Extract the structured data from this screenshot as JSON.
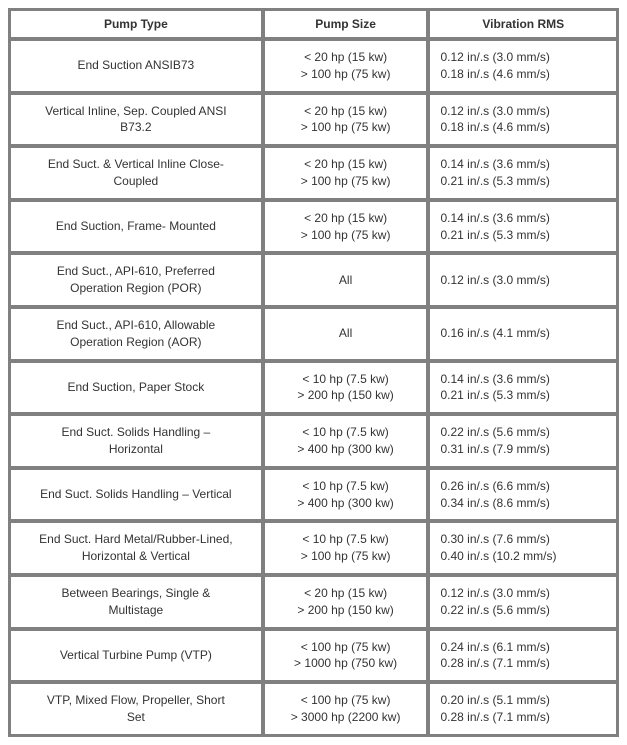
{
  "table": {
    "headers": {
      "type": "Pump Type",
      "size": "Pump Size",
      "vib": "Vibration RMS"
    },
    "rows": [
      {
        "type": [
          "End Suction ANSIB73"
        ],
        "size": [
          "< 20 hp (15 kw)",
          "> 100 hp (75 kw)"
        ],
        "vib": [
          "0.12 in/.s (3.0 mm/s)",
          "0.18 in/.s (4.6 mm/s)"
        ]
      },
      {
        "type": [
          "Vertical Inline, Sep. Coupled ANSI",
          "B73.2"
        ],
        "size": [
          "< 20 hp (15 kw)",
          "> 100 hp (75 kw)"
        ],
        "vib": [
          "0.12 in/.s (3.0 mm/s)",
          "0.18 in/.s (4.6 mm/s)"
        ]
      },
      {
        "type": [
          "End Suct. & Vertical Inline Close-",
          "Coupled"
        ],
        "size": [
          "< 20 hp (15 kw)",
          "> 100 hp (75 kw)"
        ],
        "vib": [
          "0.14 in/.s (3.6 mm/s)",
          "0.21 in/.s (5.3 mm/s)"
        ]
      },
      {
        "type": [
          "End Suction, Frame- Mounted"
        ],
        "size": [
          "< 20 hp (15 kw)",
          "> 100 hp (75 kw)"
        ],
        "vib": [
          "0.14 in/.s (3.6 mm/s)",
          "0.21 in/.s (5.3 mm/s)"
        ]
      },
      {
        "type": [
          "End Suct., API-610, Preferred",
          "Operation Region (POR)"
        ],
        "size": [
          "All"
        ],
        "vib": [
          "0.12 in/.s (3.0 mm/s)"
        ]
      },
      {
        "type": [
          "End Suct., API-610, Allowable",
          "Operation Region (AOR)"
        ],
        "size": [
          "All"
        ],
        "vib": [
          "0.16 in/.s (4.1 mm/s)"
        ]
      },
      {
        "type": [
          "End Suction, Paper Stock"
        ],
        "size": [
          "< 10 hp (7.5 kw)",
          "> 200 hp (150 kw)"
        ],
        "vib": [
          "0.14 in/.s (3.6 mm/s)",
          "0.21 in/.s (5.3 mm/s)"
        ]
      },
      {
        "type": [
          "End Suct. Solids Handling –",
          "Horizontal"
        ],
        "size": [
          "< 10 hp (7.5 kw)",
          "> 400 hp (300 kw)"
        ],
        "vib": [
          "0.22 in/.s (5.6 mm/s)",
          "0.31 in/.s (7.9 mm/s)"
        ]
      },
      {
        "type": [
          "End Suct. Solids Handling – Vertical"
        ],
        "size": [
          "< 10 hp (7.5 kw)",
          "> 400 hp (300 kw)"
        ],
        "vib": [
          "0.26 in/.s (6.6 mm/s)",
          "0.34 in/.s (8.6 mm/s)"
        ]
      },
      {
        "type": [
          "End Suct. Hard Metal/Rubber-Lined,",
          "Horizontal & Vertical"
        ],
        "size": [
          "< 10 hp (7.5 kw)",
          "> 100 hp (75 kw)"
        ],
        "vib": [
          "0.30 in/.s (7.6 mm/s)",
          "0.40 in/.s (10.2 mm/s)"
        ]
      },
      {
        "type": [
          "Between Bearings, Single &",
          "Multistage"
        ],
        "size": [
          "< 20 hp (15 kw)",
          "> 200 hp (150 kw)"
        ],
        "vib": [
          "0.12 in/.s (3.0 mm/s)",
          "0.22 in/.s (5.6 mm/s)"
        ]
      },
      {
        "type": [
          "Vertical Turbine Pump (VTP)"
        ],
        "size": [
          "< 100 hp (75 kw)",
          "> 1000 hp (750 kw)"
        ],
        "vib": [
          "0.24 in/.s (6.1 mm/s)",
          "0.28 in/.s (7.1 mm/s)"
        ]
      },
      {
        "type": [
          "VTP, Mixed Flow, Propeller, Short",
          "Set"
        ],
        "size": [
          "< 100 hp (75 kw)",
          "> 3000 hp (2200 kw)"
        ],
        "vib": [
          "0.20 in/.s (5.1 mm/s)",
          "0.28 in/.s (7.1 mm/s)"
        ]
      }
    ]
  },
  "style": {
    "background_color": "#ffffff",
    "border_color": "#808080",
    "text_color": "#333333",
    "font_size_pt": 12,
    "font_family": "Verdana, Arial, sans-serif"
  }
}
